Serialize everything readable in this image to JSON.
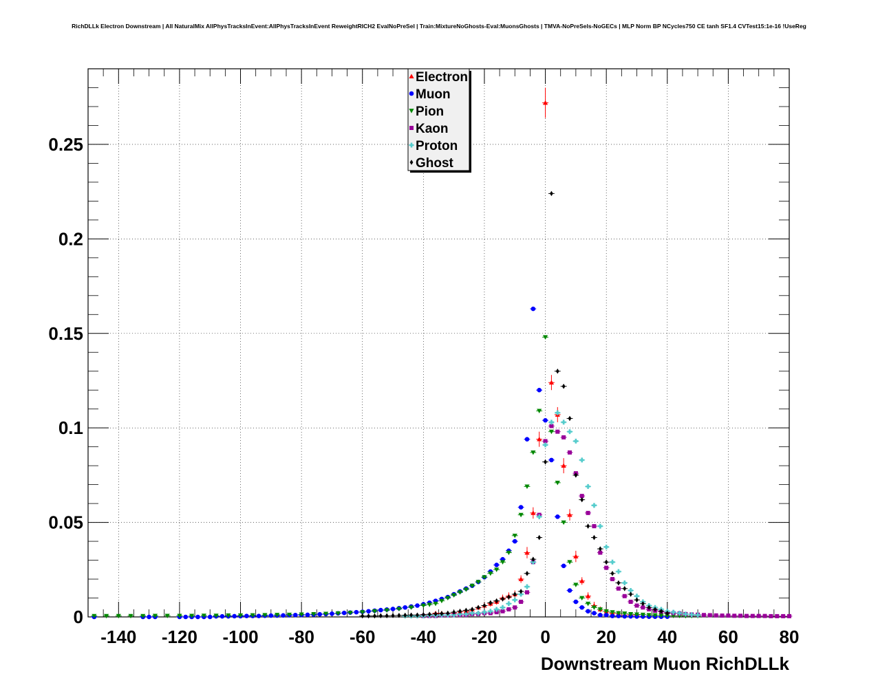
{
  "title": "RichDLLk Electron Downstream | All NaturalMix AllPhysTracksInEvent:AllPhysTracksInEvent ReweightRICH2 EvalNoPreSel | Train:MixtureNoGhosts-Eval:MuonsGhosts | TMVA-NoPreSels-NoGECs | MLP Norm BP NCycles750 CE tanh SF1.4 CVTest15:1e-16 !UseReg",
  "chart_data": {
    "type": "scatter",
    "title": "RichDLLk Electron Downstream | All NaturalMix AllPhysTracksInEvent:AllPhysTracksInEvent ReweightRICH2 EvalNoPreSel | Train:MixtureNoGhosts-Eval:MuonsGhosts | TMVA-NoPreSels-NoGECs | MLP Norm BP NCycles750 CE tanh SF1.4 CVTest15:1e-16 !UseReg",
    "xlabel": "Downstream Muon RichDLLk",
    "ylabel": "",
    "xlim": [
      -150,
      80
    ],
    "ylim": [
      0,
      0.29
    ],
    "xticks": [
      -140,
      -120,
      -100,
      -80,
      -60,
      -40,
      -20,
      0,
      20,
      40,
      60,
      80
    ],
    "xtick_labels": [
      "-140",
      "-120",
      "-100",
      "-80",
      "-60",
      "-40",
      "-20",
      "0",
      "20",
      "40",
      "60",
      "80"
    ],
    "yticks": [
      0,
      0.05,
      0.1,
      0.15,
      0.2,
      0.25
    ],
    "ytick_labels": [
      "0",
      "0.05",
      "0.1",
      "0.15",
      "0.2",
      "0.25"
    ],
    "grid": true,
    "legend_position": "top-center",
    "series": [
      {
        "name": "Electron",
        "color": "#ff0000",
        "marker": "triangle-up",
        "x": [
          -40,
          -38,
          -36,
          -34,
          -32,
          -30,
          -28,
          -26,
          -24,
          -22,
          -20,
          -18,
          -16,
          -14,
          -12,
          -10,
          -8,
          -6,
          -4,
          -2,
          0,
          2,
          4,
          6,
          8,
          10,
          12,
          14,
          16,
          18,
          20,
          22,
          24,
          26,
          28,
          30
        ],
        "y": [
          0.001,
          0.001,
          0.002,
          0.002,
          0.002,
          0.002,
          0.003,
          0.003,
          0.004,
          0.005,
          0.006,
          0.007,
          0.008,
          0.01,
          0.011,
          0.012,
          0.02,
          0.034,
          0.055,
          0.094,
          0.272,
          0.124,
          0.107,
          0.08,
          0.054,
          0.032,
          0.019,
          0.011,
          0.006,
          0.004,
          0.003,
          0.002,
          0.002,
          0.001,
          0.001,
          0.001
        ],
        "yerr": [
          0.0005,
          0.0005,
          0.0005,
          0.0008,
          0.0008,
          0.0008,
          0.001,
          0.001,
          0.001,
          0.0012,
          0.0015,
          0.0015,
          0.0015,
          0.0018,
          0.002,
          0.002,
          0.002,
          0.003,
          0.003,
          0.004,
          0.008,
          0.004,
          0.004,
          0.004,
          0.003,
          0.003,
          0.002,
          0.002,
          0.002,
          0.0015,
          0.001,
          0.001,
          0.001,
          0.0008,
          0.0008,
          0.0005
        ]
      },
      {
        "name": "Muon",
        "color": "#0000ff",
        "marker": "circle",
        "x": [
          -148,
          -132,
          -130,
          -128,
          -120,
          -118,
          -116,
          -114,
          -112,
          -110,
          -108,
          -106,
          -104,
          -102,
          -100,
          -98,
          -96,
          -94,
          -92,
          -90,
          -88,
          -86,
          -84,
          -82,
          -80,
          -78,
          -76,
          -74,
          -72,
          -70,
          -68,
          -66,
          -64,
          -62,
          -60,
          -58,
          -56,
          -54,
          -52,
          -50,
          -48,
          -46,
          -44,
          -42,
          -40,
          -38,
          -36,
          -34,
          -32,
          -30,
          -28,
          -26,
          -24,
          -22,
          -20,
          -18,
          -16,
          -14,
          -12,
          -10,
          -8,
          -6,
          -4,
          -2,
          0,
          2,
          4,
          6,
          8,
          10,
          12,
          14,
          16,
          18,
          20,
          22,
          24,
          26,
          28,
          30,
          32,
          34,
          36,
          38,
          40
        ],
        "y": [
          0,
          0,
          0,
          0,
          0,
          0,
          0,
          0,
          0,
          0,
          0.0003,
          0.0003,
          0.0003,
          0.0004,
          0.0004,
          0.0005,
          0.0005,
          0.0005,
          0.0006,
          0.0007,
          0.0007,
          0.0008,
          0.0009,
          0.001,
          0.001,
          0.0011,
          0.0012,
          0.0014,
          0.0015,
          0.0017,
          0.0019,
          0.0021,
          0.0023,
          0.0025,
          0.0027,
          0.003,
          0.0033,
          0.0036,
          0.0039,
          0.0042,
          0.0046,
          0.005,
          0.0055,
          0.006,
          0.0067,
          0.0075,
          0.0085,
          0.0095,
          0.0105,
          0.012,
          0.0135,
          0.015,
          0.0165,
          0.0185,
          0.021,
          0.024,
          0.0275,
          0.0305,
          0.035,
          0.04,
          0.058,
          0.094,
          0.163,
          0.12,
          0.104,
          0.083,
          0.053,
          0.027,
          0.014,
          0.008,
          0.005,
          0.003,
          0.002,
          0.001,
          0.001,
          0.0005,
          0.0005,
          0.0003,
          0.0003,
          0.0002,
          0.0002,
          0.0001,
          0.0001,
          0.0001,
          0.0001
        ]
      },
      {
        "name": "Pion",
        "color": "#008800",
        "marker": "triangle-down",
        "x": [
          -148,
          -144,
          -140,
          -136,
          -132,
          -128,
          -124,
          -120,
          -116,
          -112,
          -108,
          -104,
          -100,
          -96,
          -92,
          -88,
          -84,
          -80,
          -76,
          -72,
          -68,
          -64,
          -60,
          -56,
          -52,
          -48,
          -44,
          -40,
          -38,
          -36,
          -34,
          -32,
          -30,
          -28,
          -26,
          -24,
          -22,
          -20,
          -18,
          -16,
          -14,
          -12,
          -10,
          -8,
          -6,
          -4,
          -2,
          0,
          2,
          4,
          6,
          8,
          10,
          12,
          14,
          16,
          18,
          20,
          22,
          24,
          26,
          28,
          30,
          32,
          34,
          36,
          38,
          40,
          42,
          44,
          46,
          48,
          50
        ],
        "y": [
          0.0005,
          0.0005,
          0.0005,
          0.0005,
          0.0005,
          0.0006,
          0.0006,
          0.0006,
          0.0006,
          0.0007,
          0.0007,
          0.0008,
          0.0008,
          0.0009,
          0.001,
          0.0011,
          0.0012,
          0.0013,
          0.0015,
          0.0017,
          0.0019,
          0.0022,
          0.0025,
          0.003,
          0.0035,
          0.0042,
          0.005,
          0.006,
          0.0065,
          0.007,
          0.0085,
          0.01,
          0.0115,
          0.013,
          0.0145,
          0.0165,
          0.0185,
          0.021,
          0.023,
          0.025,
          0.029,
          0.034,
          0.043,
          0.054,
          0.069,
          0.087,
          0.109,
          0.148,
          0.098,
          0.071,
          0.05,
          0.029,
          0.017,
          0.01,
          0.007,
          0.005,
          0.004,
          0.003,
          0.0025,
          0.002,
          0.0018,
          0.0015,
          0.0013,
          0.0012,
          0.001,
          0.0009,
          0.0008,
          0.0007,
          0.0006,
          0.0006,
          0.0005,
          0.0005,
          0.0005
        ]
      },
      {
        "name": "Kaon",
        "color": "#990099",
        "marker": "square",
        "x": [
          -40,
          -38,
          -36,
          -34,
          -32,
          -30,
          -28,
          -26,
          -24,
          -22,
          -20,
          -18,
          -16,
          -14,
          -12,
          -10,
          -8,
          -6,
          -4,
          -2,
          0,
          2,
          4,
          6,
          8,
          10,
          12,
          14,
          16,
          18,
          20,
          22,
          24,
          26,
          28,
          30,
          32,
          34,
          36,
          38,
          40,
          42,
          44,
          46,
          48,
          50,
          52,
          54,
          56,
          58,
          60,
          62,
          64,
          66,
          68,
          70,
          72,
          74,
          76,
          78,
          80
        ],
        "y": [
          0.0005,
          0.0005,
          0.0005,
          0.0008,
          0.0008,
          0.001,
          0.001,
          0.001,
          0.0015,
          0.0015,
          0.002,
          0.002,
          0.0025,
          0.003,
          0.004,
          0.005,
          0.008,
          0.013,
          0.029,
          0.054,
          0.093,
          0.101,
          0.098,
          0.095,
          0.087,
          0.076,
          0.064,
          0.055,
          0.048,
          0.034,
          0.026,
          0.02,
          0.015,
          0.011,
          0.008,
          0.006,
          0.005,
          0.004,
          0.0033,
          0.0028,
          0.0024,
          0.002,
          0.0018,
          0.0015,
          0.0013,
          0.0012,
          0.001,
          0.0009,
          0.0008,
          0.0007,
          0.0007,
          0.0006,
          0.0006,
          0.0005,
          0.0005,
          0.0005,
          0.0005,
          0.0004,
          0.0004,
          0.0004,
          0.0004
        ]
      },
      {
        "name": "Proton",
        "color": "#55cccc",
        "marker": "cross",
        "x": [
          -46,
          -44,
          -42,
          -40,
          -38,
          -36,
          -34,
          -32,
          -30,
          -28,
          -26,
          -24,
          -22,
          -20,
          -18,
          -16,
          -14,
          -12,
          -10,
          -8,
          -6,
          -4,
          -2,
          0,
          2,
          4,
          6,
          8,
          10,
          12,
          14,
          16,
          18,
          20,
          22,
          24,
          26,
          28,
          30,
          32,
          34,
          36,
          38,
          40,
          42,
          44,
          46,
          48,
          50
        ],
        "y": [
          0.0005,
          0.0005,
          0.0005,
          0.0005,
          0.0008,
          0.0008,
          0.001,
          0.001,
          0.001,
          0.0015,
          0.0015,
          0.002,
          0.002,
          0.0025,
          0.003,
          0.004,
          0.005,
          0.007,
          0.009,
          0.012,
          0.016,
          0.029,
          0.053,
          0.091,
          0.103,
          0.108,
          0.103,
          0.098,
          0.093,
          0.083,
          0.069,
          0.059,
          0.048,
          0.037,
          0.029,
          0.024,
          0.018,
          0.014,
          0.011,
          0.008,
          0.006,
          0.005,
          0.004,
          0.003,
          0.0025,
          0.002,
          0.0015,
          0.0012,
          0.001
        ]
      },
      {
        "name": "Ghost",
        "color": "#000000",
        "marker": "diamond",
        "x": [
          -60,
          -58,
          -56,
          -54,
          -52,
          -50,
          -48,
          -46,
          -44,
          -42,
          -40,
          -38,
          -36,
          -34,
          -32,
          -30,
          -28,
          -26,
          -24,
          -22,
          -20,
          -18,
          -16,
          -14,
          -12,
          -10,
          -8,
          -6,
          -4,
          -2,
          0,
          2,
          4,
          6,
          8,
          10,
          12,
          14,
          16,
          18,
          20,
          22,
          24,
          26,
          28,
          30,
          32,
          34,
          36,
          38,
          40
        ],
        "y": [
          0.0005,
          0.0005,
          0.0005,
          0.0006,
          0.0006,
          0.0007,
          0.0008,
          0.0009,
          0.001,
          0.001,
          0.0012,
          0.0014,
          0.0016,
          0.0018,
          0.002,
          0.0025,
          0.003,
          0.0035,
          0.004,
          0.005,
          0.006,
          0.0075,
          0.0085,
          0.0095,
          0.0105,
          0.012,
          0.0135,
          0.023,
          0.0305,
          0.042,
          0.082,
          0.224,
          0.13,
          0.122,
          0.105,
          0.075,
          0.062,
          0.048,
          0.042,
          0.036,
          0.029,
          0.023,
          0.018,
          0.015,
          0.012,
          0.009,
          0.007,
          0.005,
          0.004,
          0.003,
          0.002
        ]
      }
    ]
  }
}
